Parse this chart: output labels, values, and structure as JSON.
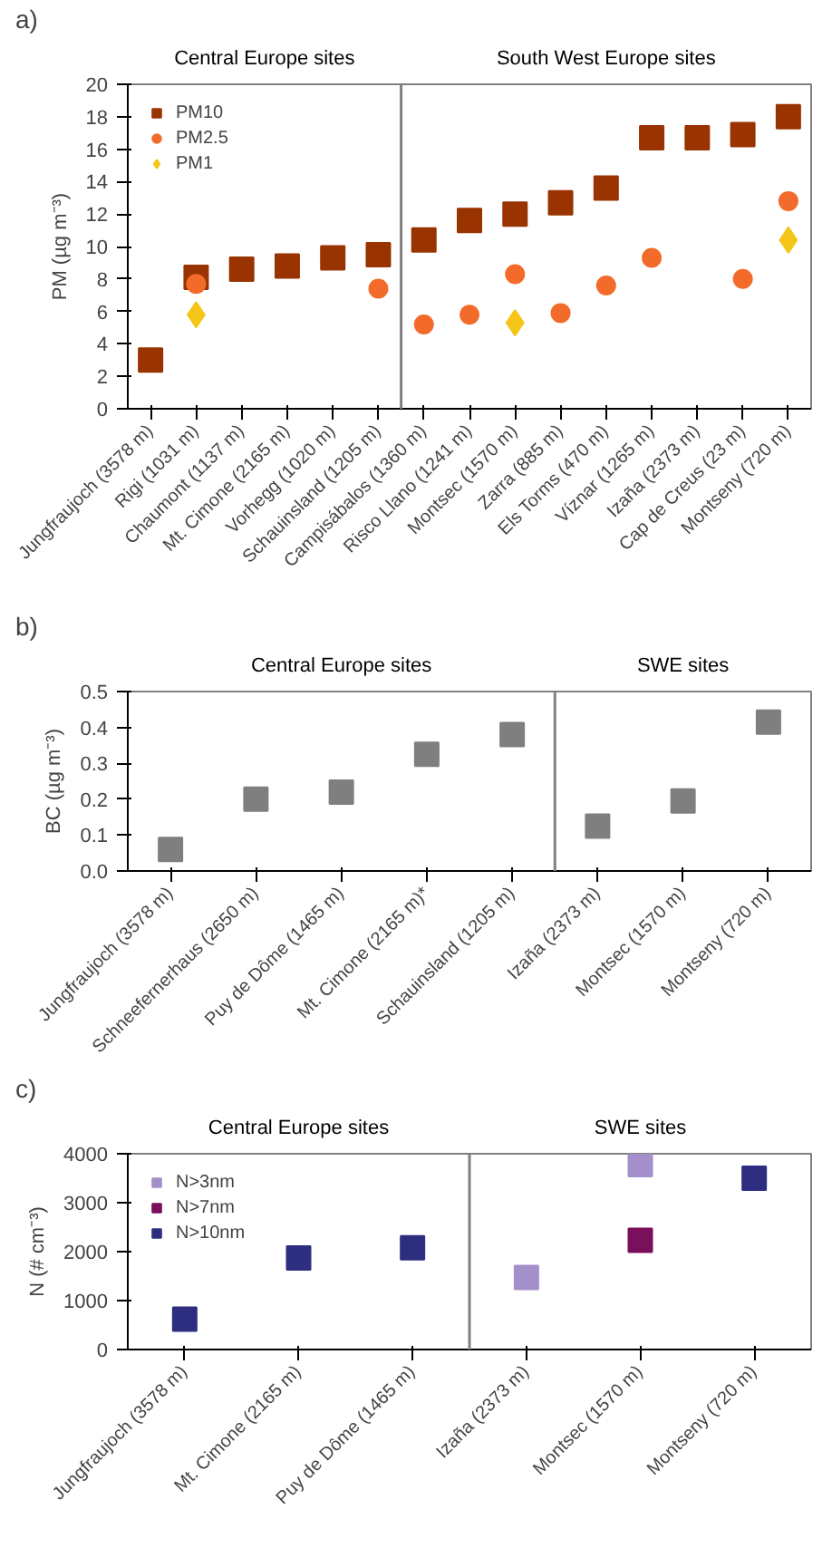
{
  "chart_data": [
    {
      "type": "scatter",
      "title": "a)",
      "ylabel": "PM (µg m⁻³)",
      "categories": [
        "Jungfraujoch (3578 m)",
        "Rigi (1031 m)",
        "Chaumont (1137 m)",
        "Mt. Cimone (2165 m)",
        "Vorhegg (1020 m)",
        "Schauinsland (1205 m)",
        "Campisábalos (1360 m)",
        "Risco Llano (1241 m)",
        "Montsec (1570 m)",
        "Zarra (885 m)",
        "Els Torms (470 m)",
        "Víznar (1265 m)",
        "Izaña (2373 m)",
        "Cap de Creus (23 m)",
        "Montseny (720 m)"
      ],
      "series": [
        {
          "name": "PM10",
          "color": "#993300",
          "marker": "square",
          "values": [
            3.0,
            8.1,
            8.6,
            8.8,
            9.3,
            9.5,
            10.4,
            11.6,
            12.0,
            12.7,
            13.6,
            16.7,
            16.7,
            16.9,
            18.0
          ]
        },
        {
          "name": "PM2.5",
          "color": "#f26b2a",
          "marker": "circle",
          "values": [
            null,
            7.7,
            null,
            null,
            null,
            7.4,
            5.2,
            5.8,
            8.3,
            5.9,
            7.6,
            9.3,
            null,
            8.0,
            12.8
          ]
        },
        {
          "name": "PM1",
          "color": "#f5c518",
          "marker": "diamond",
          "values": [
            null,
            5.8,
            null,
            null,
            null,
            null,
            null,
            null,
            5.3,
            null,
            null,
            null,
            null,
            null,
            10.4
          ]
        }
      ],
      "ylim": [
        0,
        20
      ],
      "yticks": [
        0,
        2,
        4,
        6,
        8,
        10,
        12,
        14,
        16,
        18,
        20
      ],
      "annotations": [
        "Central Europe sites",
        "South West Europe sites"
      ],
      "legend": "top left",
      "grid": false
    },
    {
      "type": "scatter",
      "title": "b)",
      "ylabel": "BC (µg m⁻³)",
      "categories": [
        "Jungfraujoch (3578 m)",
        "Schneefernerhaus (2650 m)",
        "Puy de Dôme (1465 m)",
        "Mt. Cimone (2165 m)*",
        "Schauinsland (1205 m)",
        "Izaña (2373 m)",
        "Montsec (1570 m)",
        "Montseny (720 m)"
      ],
      "series": [
        {
          "color": "#7f7f7f",
          "marker": "square",
          "values": [
            0.06,
            0.2,
            0.22,
            0.325,
            0.38,
            0.125,
            0.195,
            0.415
          ]
        }
      ],
      "ylim": [
        0,
        0.5
      ],
      "yticks": [
        {
          "value": 0,
          "label": "0.0"
        },
        0.1,
        0.2,
        0.3,
        0.4,
        0.5
      ],
      "annotations": [
        "Central Europe sites",
        "SWE sites"
      ],
      "legend": false,
      "grid": false
    },
    {
      "type": "scatter",
      "title": "c)",
      "ylabel": "N (# cm⁻³)",
      "categories": [
        "Jungfraujoch (3578 m)",
        "Mt. Cimone (2165 m)",
        "Puy de Dôme (1465 m)",
        "Izaña (2373 m)",
        "Montsec (1570 m)",
        "Montseny (720 m)"
      ],
      "series": [
        {
          "name": "N>3nm",
          "color": "#a38fc9",
          "marker": "square",
          "values": [
            null,
            null,
            null,
            1470,
            3780,
            null
          ]
        },
        {
          "name": "N>7nm",
          "color": "#7a0f5c",
          "marker": "square",
          "values": [
            null,
            null,
            null,
            null,
            2230,
            null
          ]
        },
        {
          "name": "N>10nm",
          "color": "#2e2e80",
          "marker": "square",
          "values": [
            620,
            1870,
            2080,
            null,
            null,
            3500
          ]
        }
      ],
      "ylim": [
        0,
        4000
      ],
      "yticks": [
        0,
        1000,
        2000,
        3000,
        4000
      ],
      "annotations": [
        "Central Europe sites",
        "SWE sites"
      ],
      "legend": "top left",
      "grid": false
    }
  ]
}
